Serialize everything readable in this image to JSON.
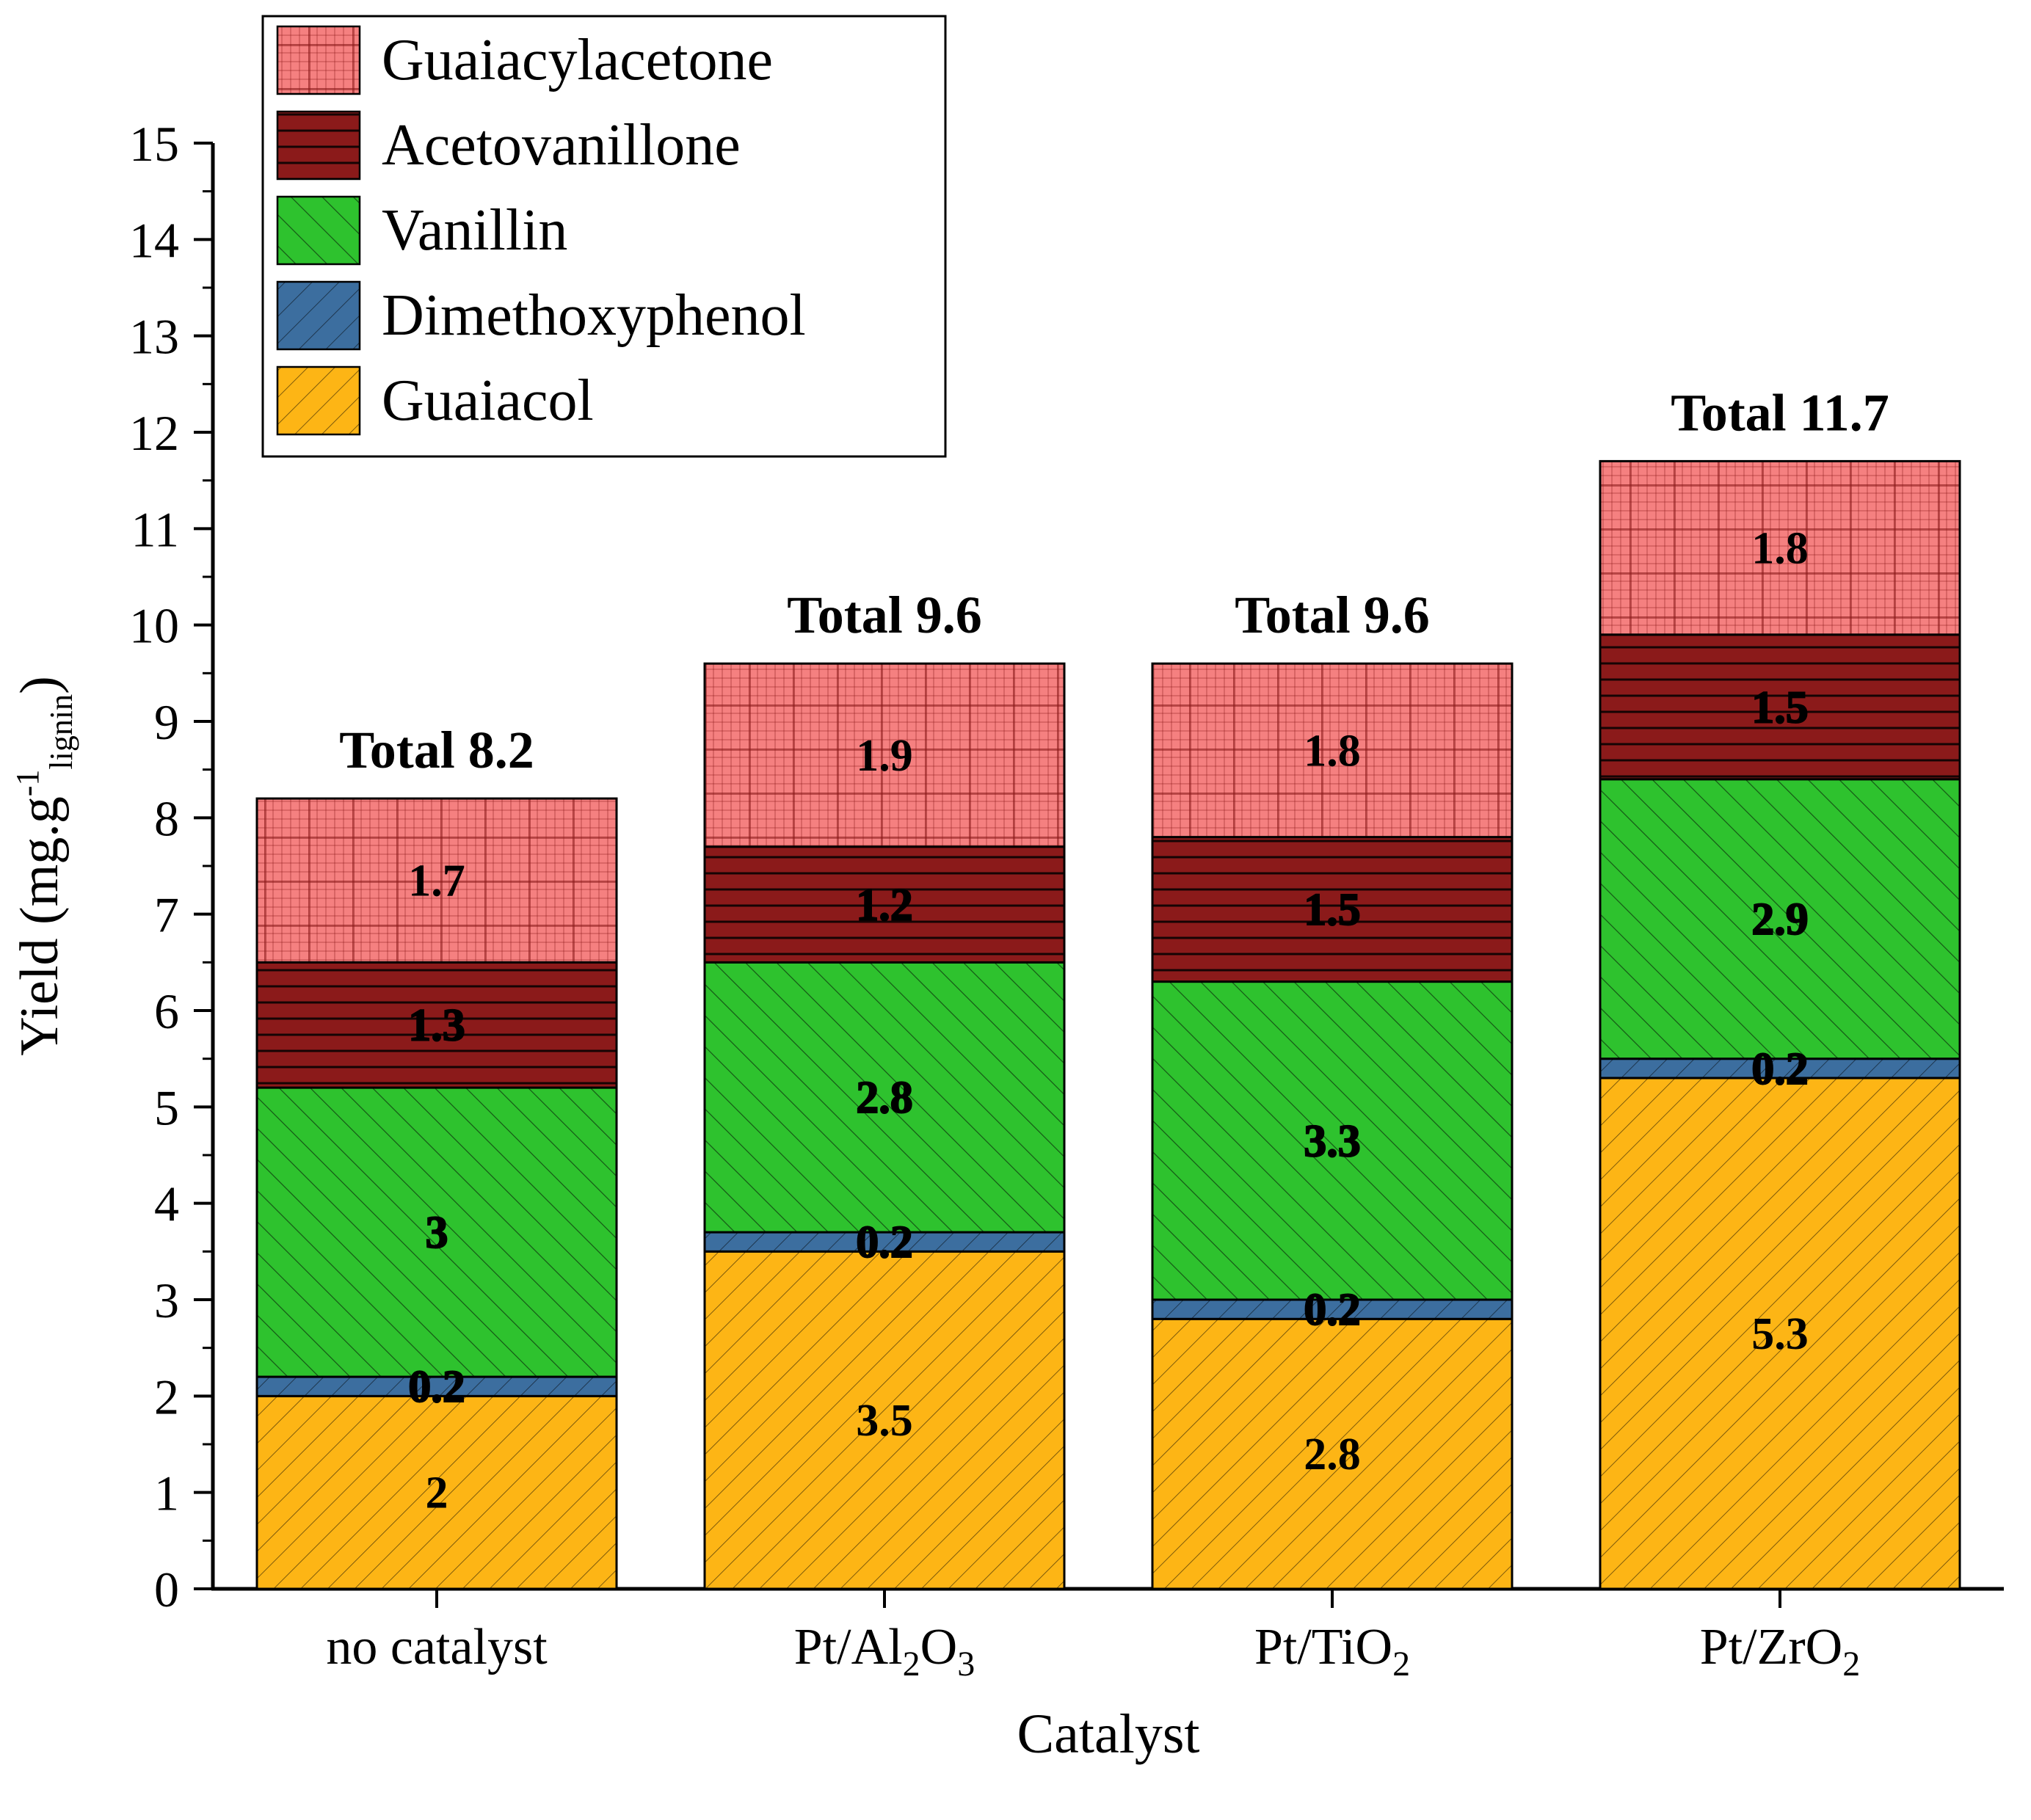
{
  "figure": {
    "background": "#FFFFFF"
  },
  "chart_data": {
    "type": "bar",
    "stacked": true,
    "xlabel": "Catalyst",
    "ylabel": "Yield (mg.g-1 lignin)",
    "ylabel_parts": [
      {
        "t": "Yield (mg.g"
      },
      {
        "t": "-1",
        "sup": true
      },
      {
        "t": "lignin",
        "sub": true
      },
      {
        "t": ")"
      }
    ],
    "ylim": [
      0,
      15
    ],
    "ytick_step": 1,
    "yminor_step": 0.5,
    "grid": false,
    "legend_position": "top-left",
    "categories": [
      "no catalyst",
      "Pt/Al2O3",
      "Pt/TiO2",
      "Pt/ZrO2"
    ],
    "category_label_parts": [
      [
        {
          "t": "no catalyst"
        }
      ],
      [
        {
          "t": "Pt/Al"
        },
        {
          "t": "2",
          "sub": true
        },
        {
          "t": "O"
        },
        {
          "t": "3",
          "sub": true
        }
      ],
      [
        {
          "t": "Pt/TiO"
        },
        {
          "t": "2",
          "sub": true
        }
      ],
      [
        {
          "t": "Pt/ZrO"
        },
        {
          "t": "2",
          "sub": true
        }
      ]
    ],
    "series": [
      {
        "name": "Guaiacol",
        "values": [
          2,
          3.5,
          2.8,
          5.3
        ],
        "color": "#FDB515",
        "pattern": "diag-up",
        "label_color": "#000000"
      },
      {
        "name": "Dimethoxyphenol",
        "values": [
          0.2,
          0.2,
          0.2,
          0.2
        ],
        "color": "#3C6E9F",
        "pattern": "diag-up",
        "label_color": "#FFFFFF"
      },
      {
        "name": "Vanillin",
        "values": [
          3,
          2.8,
          3.3,
          2.9
        ],
        "color": "#2EC22E",
        "pattern": "diag-down",
        "label_color": "#FFFFFF"
      },
      {
        "name": "Acetovanillone",
        "values": [
          1.3,
          1.2,
          1.5,
          1.5
        ],
        "color": "#8B1A1A",
        "pattern": "h-lines",
        "label_color": "#FFFFFF"
      },
      {
        "name": "Guaiacylacetone",
        "values": [
          1.7,
          1.9,
          1.8,
          1.8
        ],
        "color": "#F58080",
        "pattern": "grid",
        "label_color": "#000000"
      }
    ],
    "totals": [
      8.2,
      9.6,
      9.6,
      11.7
    ],
    "total_label_prefix": "Total",
    "legend_order": [
      "Guaiacylacetone",
      "Acetovanillone",
      "Vanillin",
      "Dimethoxyphenol",
      "Guaiacol"
    ]
  }
}
